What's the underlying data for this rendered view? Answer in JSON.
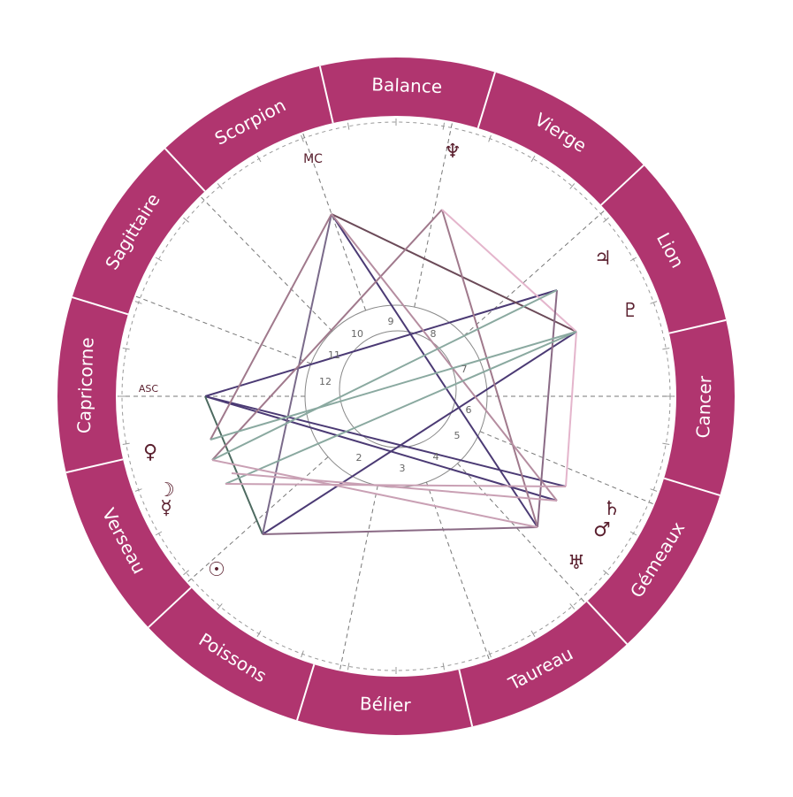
{
  "signs": [
    "Balance",
    "Vierge",
    "Lion",
    "Cancer",
    "Gémeaux",
    "Taureau",
    "Bélier",
    "Poissons",
    "Verseau",
    "Capricorne",
    "Sagittaire",
    "Scorpion"
  ],
  "angles": {
    "mc": "MC",
    "asc": "ASC"
  },
  "houses": [
    2,
    3,
    4,
    5,
    6,
    7,
    8,
    9,
    10,
    11,
    12
  ],
  "planets": [
    "♆",
    "♃",
    "♇",
    "♄",
    "♂",
    "♅",
    "☉",
    "☿",
    "☽",
    "♀"
  ]
}
